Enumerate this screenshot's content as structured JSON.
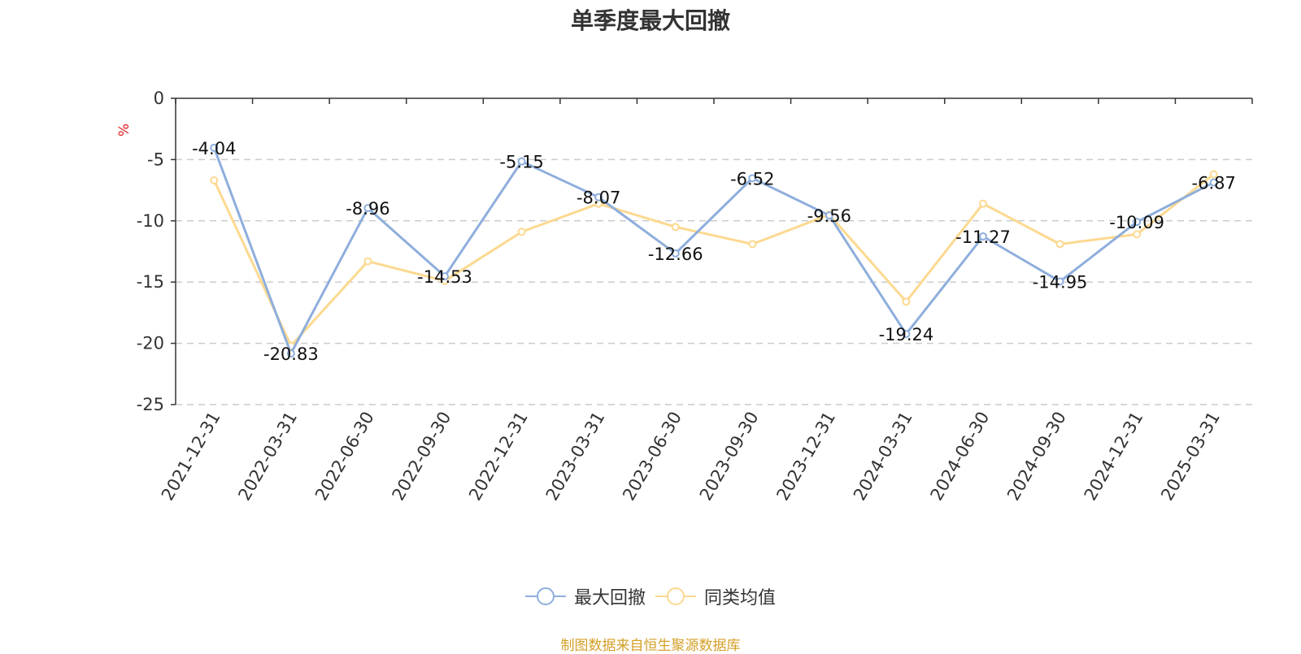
{
  "title": "单季度最大回撤",
  "source_note": "制图数据来自恒生聚源数据库",
  "chart_data": {
    "type": "line",
    "title": "单季度最大回撤",
    "ylabel": "%",
    "ylim": [
      -25,
      0
    ],
    "yticks": [
      0,
      -5,
      -10,
      -15,
      -20,
      -25
    ],
    "grid": true,
    "legend_position": "bottom",
    "x": [
      "2021-12-31",
      "2022-03-31",
      "2022-06-30",
      "2022-09-30",
      "2022-12-31",
      "2023-03-31",
      "2023-06-30",
      "2023-09-30",
      "2023-12-31",
      "2024-03-31",
      "2024-06-30",
      "2024-09-30",
      "2024-12-31",
      "2025-03-31"
    ],
    "series": [
      {
        "name": "最大回撤",
        "color": "#8eaedc",
        "values": [
          -4.04,
          -20.83,
          -8.96,
          -14.53,
          -5.15,
          -8.07,
          -12.66,
          -6.52,
          -9.56,
          -19.24,
          -11.27,
          -14.95,
          -10.09,
          -6.87
        ],
        "labels": [
          "-4.04",
          "-20.83",
          "-8.96",
          "-14.53",
          "-5.15",
          "-8.07",
          "-12.66",
          "-6.52",
          "-9.56",
          "-19.24",
          "-11.27",
          "-14.95",
          "-10.09",
          "-6.87"
        ]
      },
      {
        "name": "同类均值",
        "color": "#fcd990",
        "values": [
          -6.7,
          -20.2,
          -13.3,
          -14.9,
          -10.9,
          -8.6,
          -10.5,
          -11.9,
          -9.5,
          -16.6,
          -8.6,
          -11.9,
          -11.1,
          -6.2
        ]
      }
    ]
  }
}
